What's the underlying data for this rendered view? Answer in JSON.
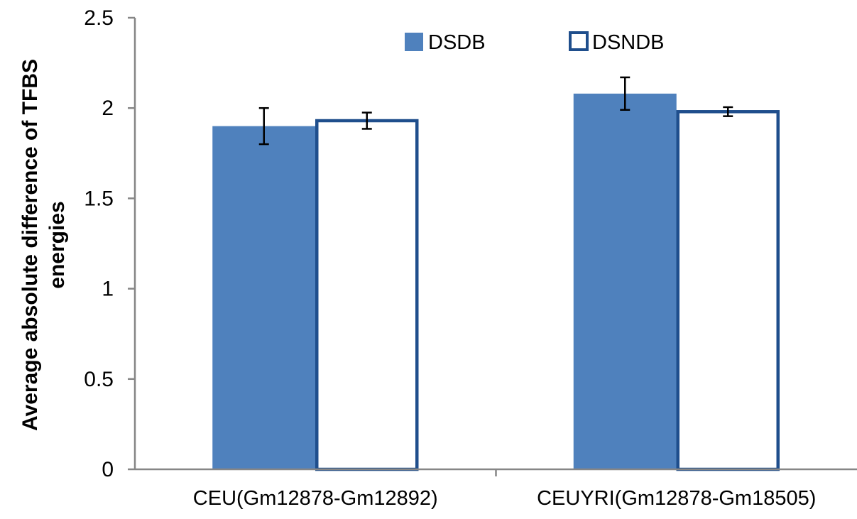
{
  "chart_data": {
    "type": "bar",
    "categories": [
      "CEU(Gm12878-Gm12892)",
      "CEUYRI(Gm12878-Gm18505)"
    ],
    "series": [
      {
        "name": "DSDB",
        "values": [
          1.9,
          2.08
        ],
        "errors": [
          0.1,
          0.09
        ],
        "color": "#4F81BD",
        "style": "filled"
      },
      {
        "name": "DSNDB",
        "values": [
          1.93,
          1.98
        ],
        "errors": [
          0.045,
          0.025
        ],
        "color": "#1F4E8C",
        "style": "outline"
      }
    ],
    "ylabel_lines": [
      "Average absolute difference of TFBS",
      "energies"
    ],
    "ylim": [
      0,
      2.5
    ],
    "yticks": [
      "0",
      "0.5",
      "1",
      "1.5",
      "2",
      "2.5"
    ],
    "ytick_values": [
      0,
      0.5,
      1,
      1.5,
      2,
      2.5
    ],
    "grid": false,
    "legend_position": "top"
  }
}
